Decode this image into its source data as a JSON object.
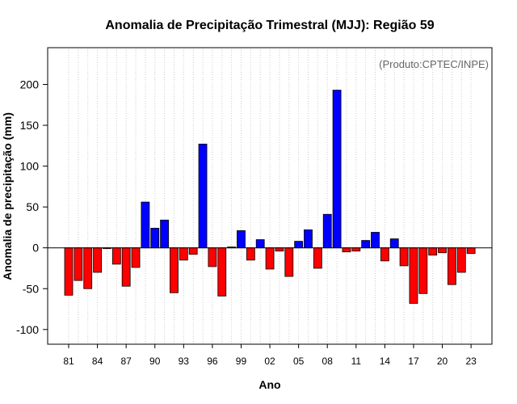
{
  "chart_data": {
    "type": "bar",
    "title": "Anomalia de Precipitação Trimestral (MJJ): Região 59",
    "xlabel": "Ano",
    "ylabel": "Anomalia de precipitação (mm)",
    "annotation": "(Produto:CPTEC/INPE)",
    "ylim": [
      -118,
      245
    ],
    "yticks": [
      -100,
      -50,
      0,
      50,
      100,
      150,
      200
    ],
    "xtick_labels": [
      "81",
      "84",
      "87",
      "90",
      "93",
      "96",
      "99",
      "02",
      "05",
      "08",
      "11",
      "14",
      "17",
      "20",
      "23"
    ],
    "grid": "vertical-dotted",
    "years": [
      1981,
      1982,
      1983,
      1984,
      1985,
      1986,
      1987,
      1988,
      1989,
      1990,
      1991,
      1992,
      1993,
      1994,
      1995,
      1996,
      1997,
      1998,
      1999,
      2000,
      2001,
      2002,
      2003,
      2004,
      2005,
      2006,
      2007,
      2008,
      2009,
      2010,
      2011,
      2012,
      2013,
      2014,
      2015,
      2016,
      2017,
      2018,
      2019,
      2020,
      2021,
      2022,
      2023
    ],
    "values": [
      -58,
      -40,
      -50,
      -30,
      -1,
      -20,
      -47,
      -24,
      56,
      24,
      34,
      -55,
      -15,
      -8,
      127,
      -23,
      -59,
      1,
      21,
      -15,
      10,
      -26,
      -4,
      -35,
      8,
      22,
      -25,
      41,
      193,
      -5,
      -4,
      9,
      19,
      -16,
      11,
      -22,
      -68,
      -56,
      -9,
      -6,
      -45,
      -30,
      -7
    ],
    "colors": {
      "positive": "#0000ff",
      "negative": "#ff0000"
    }
  }
}
